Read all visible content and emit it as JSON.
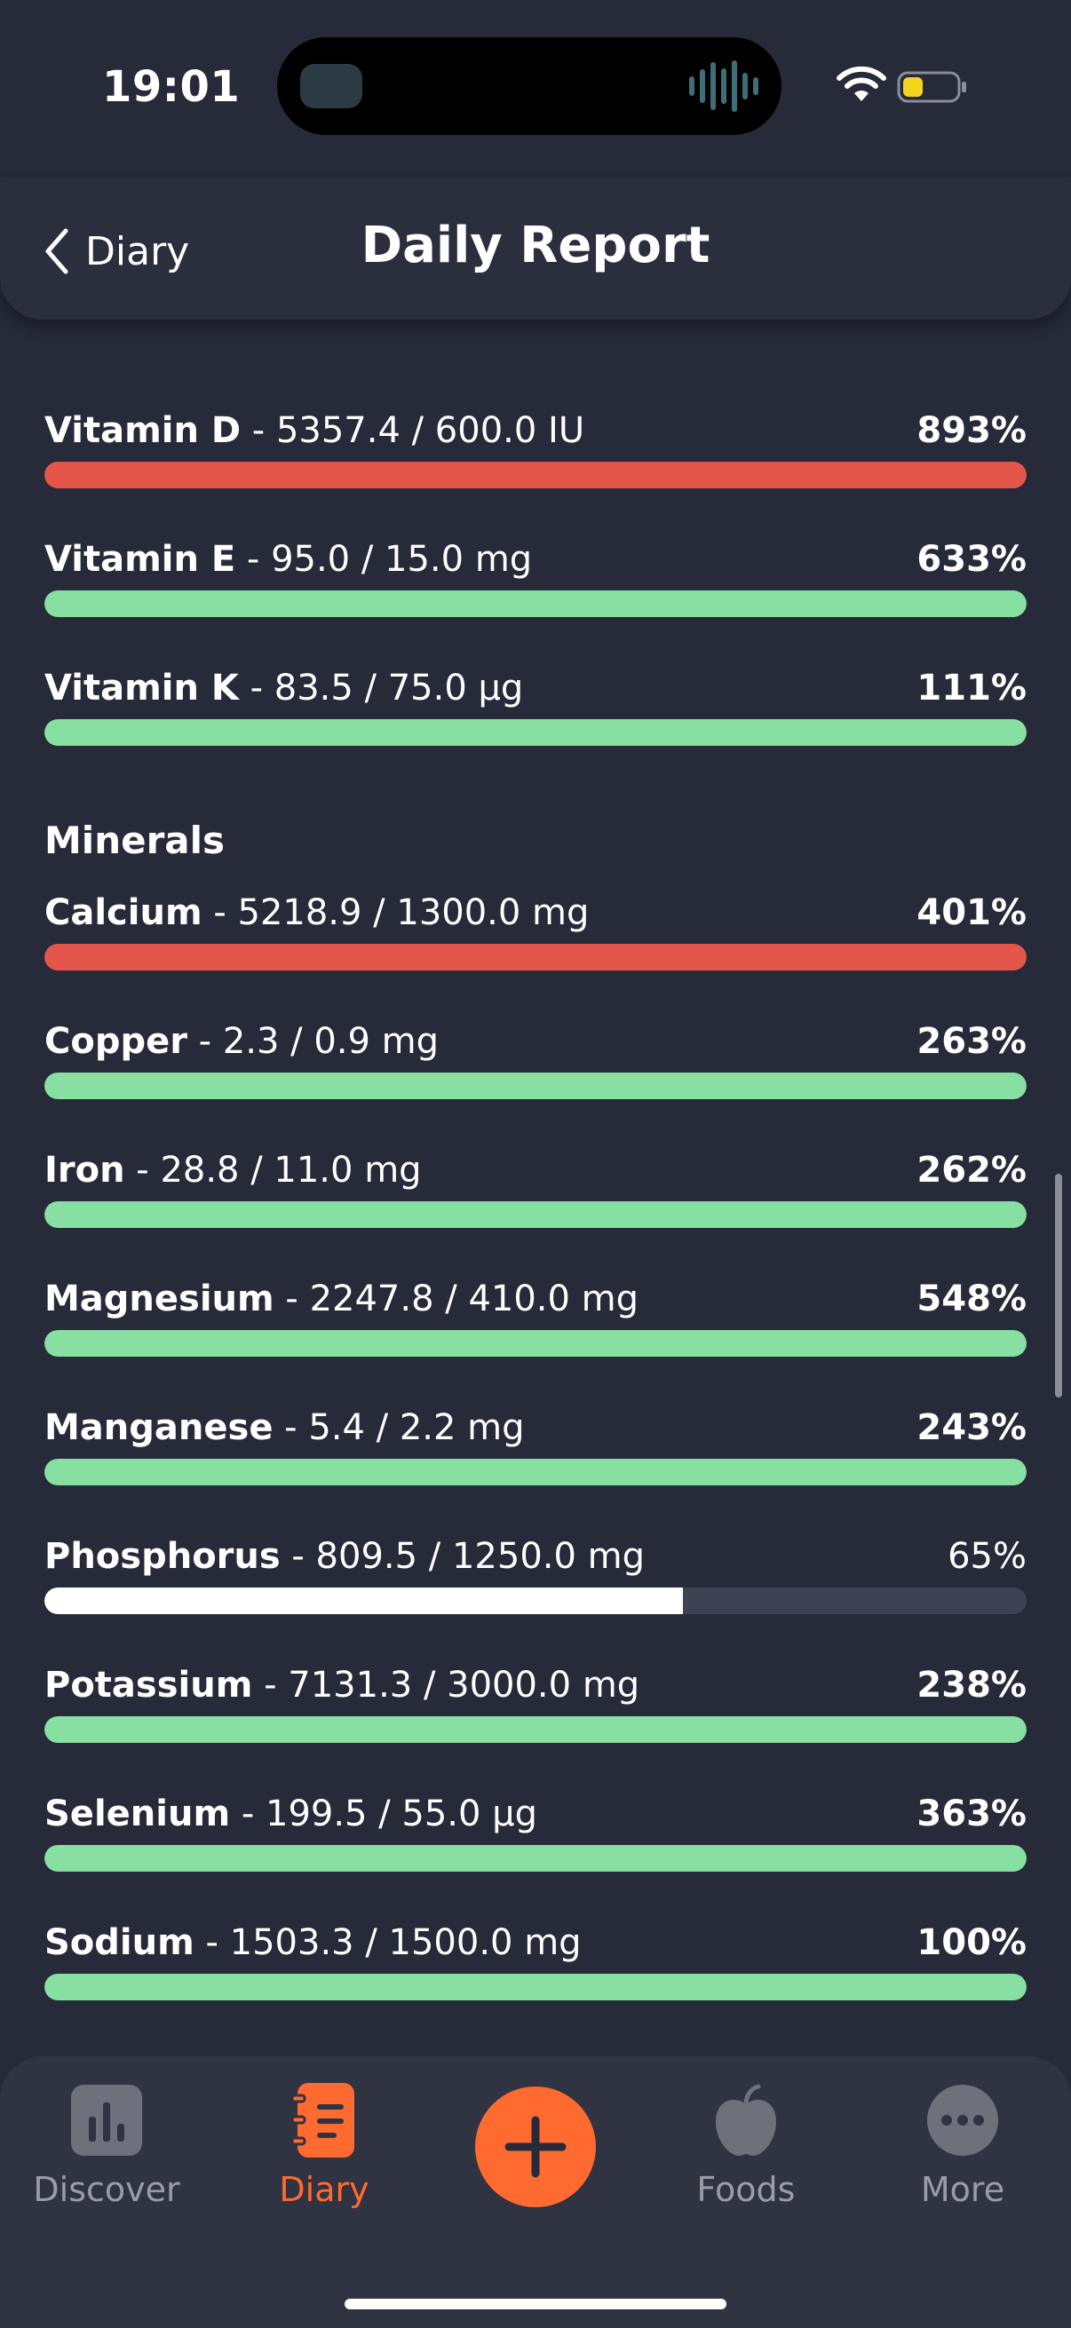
{
  "status": {
    "time": "19:01"
  },
  "header": {
    "back_label": "Diary",
    "title": "Daily Report"
  },
  "colors": {
    "over": "#E5564A",
    "ok": "#88DFA2",
    "under": "#FFFFFF",
    "accent": "#FF6A30"
  },
  "sections": {
    "minerals_title": "Minerals"
  },
  "nutrients": [
    {
      "name": "",
      "detail": "",
      "percent": "",
      "level": 1.0,
      "status": "ok"
    },
    {
      "name": "Vitamin D",
      "detail": " - 5357.4 / 600.0 IU",
      "percent": "893%",
      "level": 1.0,
      "status": "over"
    },
    {
      "name": "Vitamin E",
      "detail": " - 95.0 / 15.0 mg",
      "percent": "633%",
      "level": 1.0,
      "status": "ok"
    },
    {
      "name": "Vitamin K",
      "detail": " - 83.5 / 75.0 µg",
      "percent": "111%",
      "level": 1.0,
      "status": "ok"
    },
    {
      "name": "Calcium",
      "detail": " - 5218.9 / 1300.0 mg",
      "percent": "401%",
      "level": 1.0,
      "status": "over"
    },
    {
      "name": "Copper",
      "detail": " - 2.3 / 0.9 mg",
      "percent": "263%",
      "level": 1.0,
      "status": "ok"
    },
    {
      "name": "Iron",
      "detail": " - 28.8 / 11.0 mg",
      "percent": "262%",
      "level": 1.0,
      "status": "ok"
    },
    {
      "name": "Magnesium",
      "detail": " - 2247.8 / 410.0 mg",
      "percent": "548%",
      "level": 1.0,
      "status": "ok"
    },
    {
      "name": "Manganese",
      "detail": " - 5.4 / 2.2 mg",
      "percent": "243%",
      "level": 1.0,
      "status": "ok"
    },
    {
      "name": "Phosphorus",
      "detail": " - 809.5 / 1250.0 mg",
      "percent": "65%",
      "level": 0.65,
      "status": "under"
    },
    {
      "name": "Potassium",
      "detail": " - 7131.3 / 3000.0 mg",
      "percent": "238%",
      "level": 1.0,
      "status": "ok"
    },
    {
      "name": "Selenium",
      "detail": " - 199.5 / 55.0 µg",
      "percent": "363%",
      "level": 1.0,
      "status": "ok"
    },
    {
      "name": "Sodium",
      "detail": " - 1503.3 / 1500.0 mg",
      "percent": "100%",
      "level": 1.0,
      "status": "ok"
    }
  ],
  "tabs": {
    "discover": "Discover",
    "diary": "Diary",
    "foods": "Foods",
    "more": "More"
  }
}
